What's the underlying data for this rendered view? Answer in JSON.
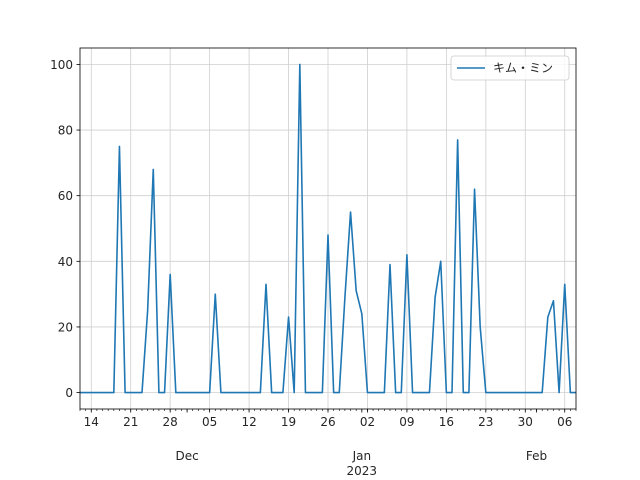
{
  "chart_data": {
    "type": "line",
    "legend_placement": "top-right",
    "grid": true,
    "colors": {
      "line": "#1f77b4",
      "grid": "#cfcfcf",
      "axis": "#000000"
    },
    "series": [
      {
        "name": "キム・ミン",
        "x": [
          "2022-11-12",
          "2022-11-13",
          "2022-11-14",
          "2022-11-15",
          "2022-11-16",
          "2022-11-17",
          "2022-11-18",
          "2022-11-19",
          "2022-11-20",
          "2022-11-21",
          "2022-11-22",
          "2022-11-23",
          "2022-11-24",
          "2022-11-25",
          "2022-11-26",
          "2022-11-27",
          "2022-11-28",
          "2022-11-29",
          "2022-11-30",
          "2022-12-01",
          "2022-12-02",
          "2022-12-03",
          "2022-12-04",
          "2022-12-05",
          "2022-12-06",
          "2022-12-07",
          "2022-12-08",
          "2022-12-09",
          "2022-12-10",
          "2022-12-11",
          "2022-12-12",
          "2022-12-13",
          "2022-12-14",
          "2022-12-15",
          "2022-12-16",
          "2022-12-17",
          "2022-12-18",
          "2022-12-19",
          "2022-12-20",
          "2022-12-21",
          "2022-12-22",
          "2022-12-23",
          "2022-12-24",
          "2022-12-25",
          "2022-12-26",
          "2022-12-27",
          "2022-12-28",
          "2022-12-29",
          "2022-12-30",
          "2022-12-31",
          "2023-01-01",
          "2023-01-02",
          "2023-01-03",
          "2023-01-04",
          "2023-01-05",
          "2023-01-06",
          "2023-01-07",
          "2023-01-08",
          "2023-01-09",
          "2023-01-10",
          "2023-01-11",
          "2023-01-12",
          "2023-01-13",
          "2023-01-14",
          "2023-01-15",
          "2023-01-16",
          "2023-01-17",
          "2023-01-18",
          "2023-01-19",
          "2023-01-20",
          "2023-01-21",
          "2023-01-22",
          "2023-01-23",
          "2023-01-24",
          "2023-01-25",
          "2023-01-26",
          "2023-01-27",
          "2023-01-28",
          "2023-01-29",
          "2023-01-30",
          "2023-01-31",
          "2023-02-01",
          "2023-02-02",
          "2023-02-03",
          "2023-02-04",
          "2023-02-05",
          "2023-02-06",
          "2023-02-07",
          "2023-02-08"
        ],
        "values": [
          0,
          0,
          0,
          0,
          0,
          0,
          0,
          75,
          0,
          0,
          0,
          0,
          25,
          68,
          0,
          0,
          36,
          0,
          0,
          0,
          0,
          0,
          0,
          0,
          30,
          0,
          0,
          0,
          0,
          0,
          0,
          0,
          0,
          33,
          0,
          0,
          0,
          23,
          0,
          100,
          0,
          0,
          0,
          0,
          48,
          0,
          0,
          29,
          55,
          31,
          24,
          0,
          0,
          0,
          0,
          39,
          0,
          0,
          42,
          0,
          0,
          0,
          0,
          29,
          40,
          0,
          0,
          77,
          0,
          0,
          62,
          20,
          0,
          0,
          0,
          0,
          0,
          0,
          0,
          0,
          0,
          0,
          0,
          23,
          28,
          0,
          33,
          0,
          0
        ]
      }
    ],
    "xlim": [
      "2022-11-12",
      "2023-02-08"
    ],
    "ylim": [
      -5,
      105
    ],
    "yticks": [
      0,
      20,
      40,
      60,
      80,
      100
    ],
    "xticks_major": [
      {
        "date": "2022-11-14",
        "label": "14"
      },
      {
        "date": "2022-11-21",
        "label": "21"
      },
      {
        "date": "2022-11-28",
        "label": "28"
      },
      {
        "date": "2022-12-05",
        "label": "05"
      },
      {
        "date": "2022-12-12",
        "label": "12"
      },
      {
        "date": "2022-12-19",
        "label": "19"
      },
      {
        "date": "2022-12-26",
        "label": "26"
      },
      {
        "date": "2023-01-02",
        "label": "02"
      },
      {
        "date": "2023-01-09",
        "label": "09"
      },
      {
        "date": "2023-01-16",
        "label": "16"
      },
      {
        "date": "2023-01-23",
        "label": "23"
      },
      {
        "date": "2023-01-30",
        "label": "30"
      },
      {
        "date": "2023-02-06",
        "label": "06"
      }
    ],
    "xticks_month": [
      {
        "date": "2022-12-01",
        "label": "Dec"
      },
      {
        "date": "2023-01-01",
        "label": "Jan"
      },
      {
        "date": "2023-02-01",
        "label": "Feb"
      }
    ],
    "year_label": {
      "date": "2023-01-01",
      "label": "2023"
    }
  }
}
